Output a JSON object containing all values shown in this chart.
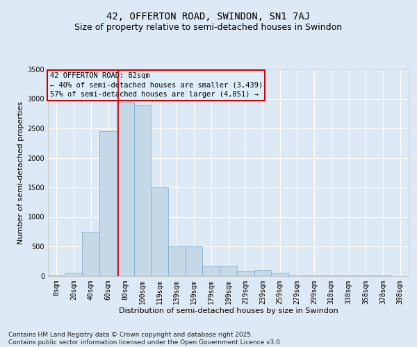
{
  "title": "42, OFFERTON ROAD, SWINDON, SN1 7AJ",
  "subtitle": "Size of property relative to semi-detached houses in Swindon",
  "xlabel": "Distribution of semi-detached houses by size in Swindon",
  "ylabel": "Number of semi-detached properties",
  "annotation_title": "42 OFFERTON ROAD: 82sqm",
  "annotation_line1": "← 40% of semi-detached houses are smaller (3,439)",
  "annotation_line2": "57% of semi-detached houses are larger (4,851) →",
  "property_value": 82,
  "footer": "Contains HM Land Registry data © Crown copyright and database right 2025.\nContains public sector information licensed under the Open Government Licence v3.0.",
  "bin_labels": [
    "0sqm",
    "20sqm",
    "40sqm",
    "60sqm",
    "80sqm",
    "100sqm",
    "119sqm",
    "139sqm",
    "159sqm",
    "179sqm",
    "199sqm",
    "219sqm",
    "239sqm",
    "259sqm",
    "279sqm",
    "299sqm",
    "318sqm",
    "338sqm",
    "358sqm",
    "378sqm",
    "398sqm"
  ],
  "bin_edges": [
    0,
    20,
    40,
    60,
    80,
    100,
    119,
    139,
    159,
    179,
    199,
    219,
    239,
    259,
    279,
    299,
    318,
    338,
    358,
    378,
    398
  ],
  "bar_heights": [
    5,
    55,
    750,
    2450,
    2950,
    2900,
    1500,
    500,
    500,
    175,
    175,
    75,
    100,
    50,
    10,
    10,
    5,
    5,
    2,
    1,
    0
  ],
  "bar_color": "#c5d8e8",
  "bar_edge_color": "#7ca8c8",
  "ylim": [
    0,
    3500
  ],
  "yticks": [
    0,
    500,
    1000,
    1500,
    2000,
    2500,
    3000,
    3500
  ],
  "background_color": "#ddeaf5",
  "plot_bg_color": "#ddeaf5",
  "grid_color": "#ffffff",
  "annotation_box_color": "#ddeef8",
  "annotation_box_edge": "#cc0000",
  "red_line_color": "#cc0000",
  "title_fontsize": 10,
  "subtitle_fontsize": 9,
  "axis_label_fontsize": 8,
  "tick_fontsize": 7,
  "annotation_fontsize": 7.5,
  "footer_fontsize": 6.5
}
